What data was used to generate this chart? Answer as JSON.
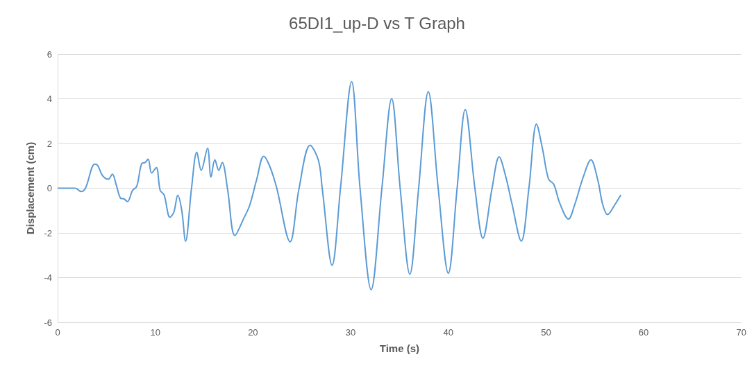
{
  "chart_data": {
    "type": "line",
    "title": "65DI1_up-D vs T Graph",
    "xlabel": "Time (s)",
    "ylabel": "Displacement (cm)",
    "xlim": [
      0,
      70
    ],
    "xticks": [
      0,
      10,
      20,
      30,
      40,
      50,
      60,
      70
    ],
    "ylim": [
      -6,
      6
    ],
    "yticks": [
      -6,
      -4,
      -2,
      0,
      2,
      4,
      6
    ],
    "grid": "y",
    "marker": "none",
    "line_style": "solid",
    "series": [
      {
        "color": "#5b9bd5",
        "x": [
          0,
          1.8,
          2.4,
          2.85,
          3.8,
          4.1,
          4.6,
          5.2,
          5.6,
          6.0,
          6.45,
          6.8,
          7.15,
          7.67,
          8.1,
          8.6,
          8.96,
          9.27,
          9.62,
          10.1,
          10.5,
          10.9,
          11.5,
          11.9,
          12.3,
          12.7,
          13.1,
          13.7,
          14.25,
          14.7,
          15.35,
          15.7,
          16.1,
          16.5,
          16.85,
          17.4,
          18.15,
          19.08,
          19.67,
          20.37,
          21.1,
          21.7,
          22.4,
          23.8,
          24.7,
          25.85,
          26.7,
          27.1,
          28.1,
          28.96,
          30.1,
          30.96,
          32.1,
          33.2,
          34.2,
          35.07,
          36.06,
          36.96,
          37.95,
          38.96,
          40.0,
          40.9,
          41.73,
          42.72,
          43.54,
          44.48,
          45.2,
          45.9,
          46.5,
          47.47,
          48.25,
          49.03,
          49.66,
          50.25,
          50.8,
          51.4,
          52.3,
          52.95,
          53.8,
          54.6,
          55.3,
          55.8,
          56.3,
          57.07,
          57.66
        ],
        "values": [
          0,
          0,
          -0.15,
          0,
          1.08,
          1.02,
          0.56,
          0.4,
          0.63,
          0.15,
          -0.45,
          -0.48,
          -0.6,
          -0.1,
          0.08,
          1.1,
          1.15,
          1.3,
          0.68,
          0.92,
          -0.1,
          -0.3,
          -1.3,
          -1.07,
          -0.32,
          -0.97,
          -2.37,
          -0.04,
          1.61,
          0.8,
          1.79,
          0.5,
          1.27,
          0.8,
          1.15,
          -0.05,
          -2.12,
          -1.33,
          -0.76,
          0.37,
          1.43,
          1.0,
          0.06,
          -2.4,
          -0.05,
          1.92,
          1.25,
          -0.05,
          -3.45,
          0,
          4.77,
          0,
          -4.54,
          0,
          4.01,
          0,
          -3.85,
          0,
          4.32,
          0,
          -3.81,
          0,
          3.52,
          0,
          -2.24,
          0,
          1.4,
          0.48,
          -0.67,
          -2.37,
          0,
          2.87,
          1.72,
          0.42,
          0.17,
          -0.66,
          -1.38,
          -0.72,
          0.48,
          1.27,
          0.37,
          -0.72,
          -1.18,
          -0.72,
          -0.3
        ]
      }
    ]
  }
}
